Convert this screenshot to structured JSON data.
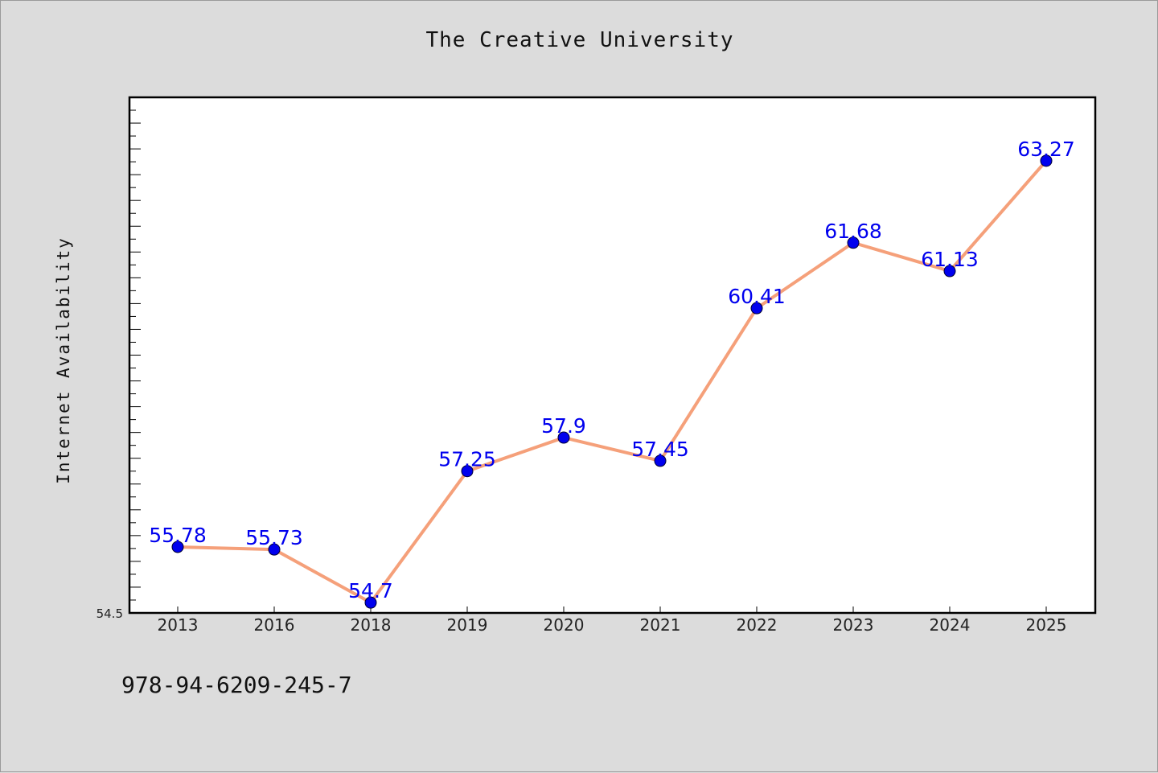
{
  "chart_data": {
    "type": "line",
    "title": "The Creative University",
    "xlabel": "",
    "ylabel": "Internet Availability",
    "categories": [
      "2013",
      "2016",
      "2018",
      "2019",
      "2020",
      "2021",
      "2022",
      "2023",
      "2024",
      "2025"
    ],
    "series": [
      {
        "values": [
          55.78,
          55.73,
          54.7,
          57.25,
          57.9,
          57.45,
          60.41,
          61.68,
          61.13,
          63.27
        ],
        "labels": [
          "55.78",
          "55.73",
          "54.7",
          "57.25",
          "57.9",
          "57.45",
          "60.41",
          "61.68",
          "61.13",
          "63.27"
        ],
        "line_color": "#f5a07a",
        "marker_color": "#0000ee"
      }
    ],
    "ylim": [
      54.5,
      64.5
    ],
    "y_tick_label": "54.5",
    "grid": false,
    "legend": "none"
  },
  "footer": {
    "isbn": "978-94-6209-245-7"
  }
}
